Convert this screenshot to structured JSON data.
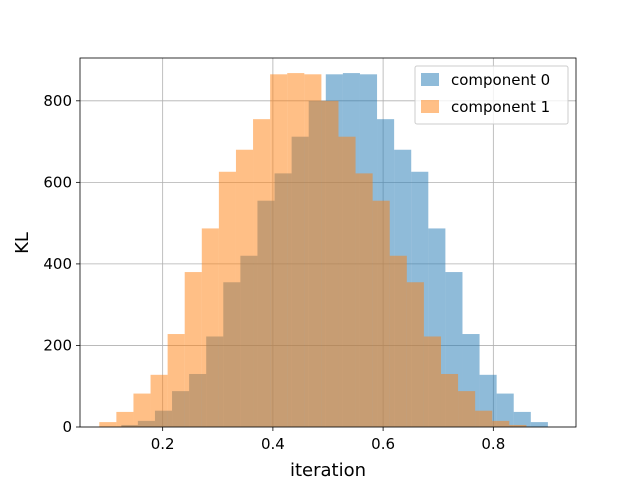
{
  "chart_data": {
    "type": "bar",
    "title": "",
    "xlabel": "iteration",
    "ylabel": "KL",
    "xlim": [
      0.05,
      0.95
    ],
    "ylim": [
      0,
      905
    ],
    "xticks": [
      0.2,
      0.4,
      0.6,
      0.8
    ],
    "xtick_labels": [
      "0.2",
      "0.4",
      "0.6",
      "0.8"
    ],
    "yticks": [
      0,
      200,
      400,
      600,
      800
    ],
    "ytick_labels": [
      "0",
      "200",
      "400",
      "600",
      "800"
    ],
    "grid": true,
    "legend_position": "top-right",
    "series": [
      {
        "name": "component 0",
        "color": "#1f77b4",
        "opacity": 0.5,
        "bins": [
          [
            0.125,
            0.155,
            5
          ],
          [
            0.155,
            0.186,
            15
          ],
          [
            0.186,
            0.217,
            40
          ],
          [
            0.217,
            0.248,
            88
          ],
          [
            0.248,
            0.279,
            130
          ],
          [
            0.279,
            0.31,
            222
          ],
          [
            0.31,
            0.341,
            355
          ],
          [
            0.341,
            0.372,
            420
          ],
          [
            0.372,
            0.403,
            555
          ],
          [
            0.403,
            0.434,
            622
          ],
          [
            0.434,
            0.465,
            712
          ],
          [
            0.465,
            0.496,
            800
          ],
          [
            0.496,
            0.527,
            865
          ],
          [
            0.527,
            0.558,
            868
          ],
          [
            0.558,
            0.589,
            865
          ],
          [
            0.589,
            0.62,
            755
          ],
          [
            0.62,
            0.651,
            680
          ],
          [
            0.651,
            0.682,
            626
          ],
          [
            0.682,
            0.713,
            487
          ],
          [
            0.713,
            0.744,
            380
          ],
          [
            0.744,
            0.775,
            228
          ],
          [
            0.775,
            0.806,
            128
          ],
          [
            0.806,
            0.837,
            82
          ],
          [
            0.837,
            0.868,
            37
          ],
          [
            0.868,
            0.899,
            12
          ]
        ]
      },
      {
        "name": "component 1",
        "color": "#ff7f0e",
        "opacity": 0.5,
        "bins": [
          [
            0.085,
            0.116,
            12
          ],
          [
            0.116,
            0.147,
            37
          ],
          [
            0.147,
            0.178,
            82
          ],
          [
            0.178,
            0.209,
            128
          ],
          [
            0.209,
            0.24,
            228
          ],
          [
            0.24,
            0.271,
            380
          ],
          [
            0.271,
            0.302,
            487
          ],
          [
            0.302,
            0.333,
            626
          ],
          [
            0.333,
            0.364,
            680
          ],
          [
            0.364,
            0.395,
            755
          ],
          [
            0.395,
            0.426,
            865
          ],
          [
            0.426,
            0.457,
            868
          ],
          [
            0.457,
            0.488,
            865
          ],
          [
            0.488,
            0.519,
            800
          ],
          [
            0.519,
            0.55,
            712
          ],
          [
            0.55,
            0.581,
            622
          ],
          [
            0.581,
            0.612,
            555
          ],
          [
            0.612,
            0.643,
            420
          ],
          [
            0.643,
            0.674,
            355
          ],
          [
            0.674,
            0.705,
            222
          ],
          [
            0.705,
            0.736,
            130
          ],
          [
            0.736,
            0.767,
            88
          ],
          [
            0.767,
            0.798,
            40
          ],
          [
            0.798,
            0.829,
            15
          ],
          [
            0.829,
            0.86,
            5
          ]
        ]
      }
    ]
  }
}
